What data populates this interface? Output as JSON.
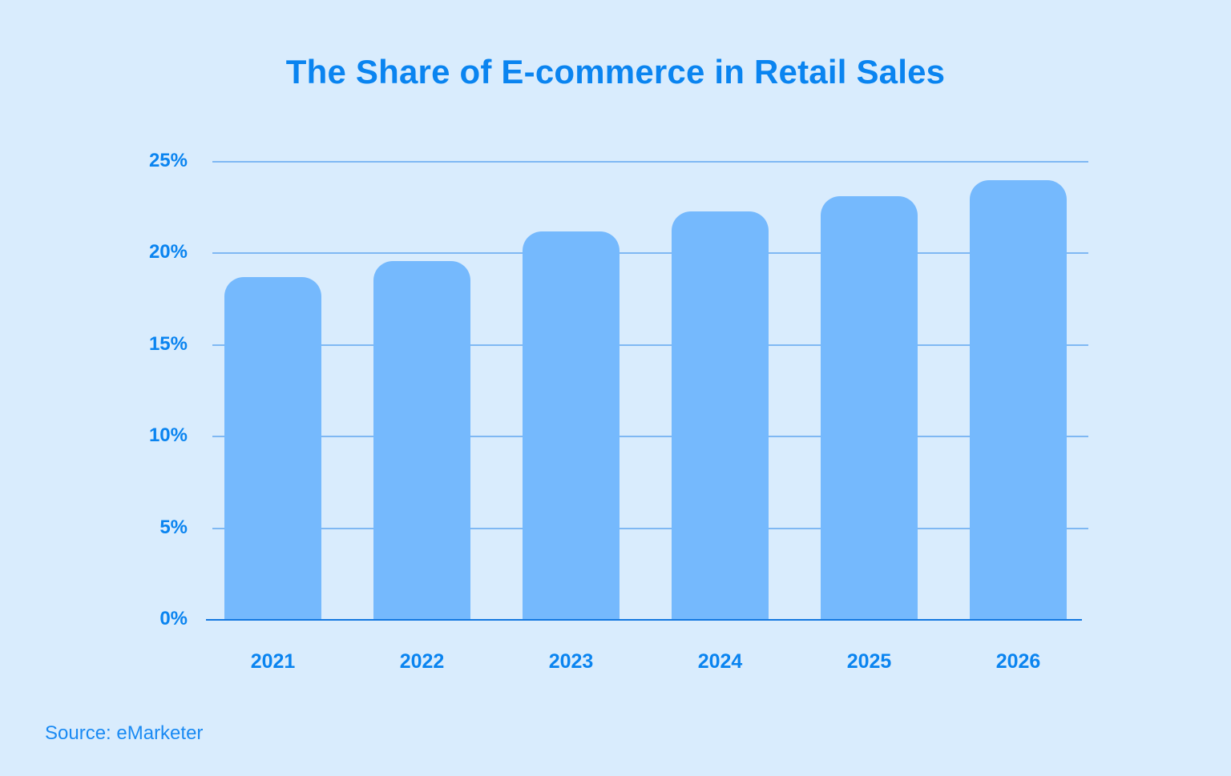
{
  "title": "The Share of E-commerce in Retail Sales",
  "source": "Source: eMarketer",
  "colors": {
    "background": "#d9ecfd",
    "bar": "#75b9fd",
    "text": "#0a84f0",
    "grid": "#7fb8f3",
    "axis": "#1478e0"
  },
  "chart_data": {
    "type": "bar",
    "title": "The Share of E-commerce in Retail Sales",
    "xlabel": "",
    "ylabel": "",
    "categories": [
      "2021",
      "2022",
      "2023",
      "2024",
      "2025",
      "2026"
    ],
    "values": [
      18.7,
      19.6,
      21.2,
      22.3,
      23.1,
      24.0
    ],
    "unit": "%",
    "ylim": [
      0,
      25
    ],
    "yticks": [
      "0%",
      "5%",
      "10%",
      "15%",
      "20%",
      "25%"
    ],
    "grid": true,
    "legend": null,
    "source": "Source: eMarketer"
  }
}
